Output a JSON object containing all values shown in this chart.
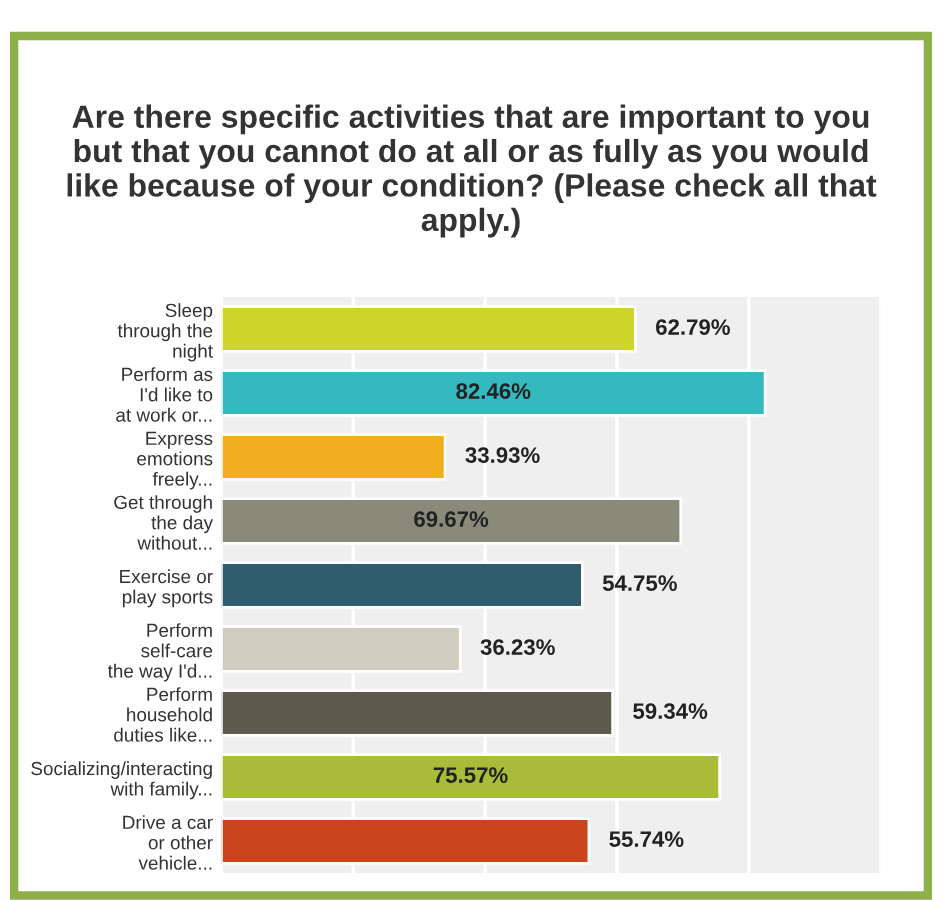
{
  "chart_data": {
    "type": "bar",
    "orientation": "horizontal",
    "title": "Are there specific activities that are important to you but that you cannot do at all or as fully as you would like because of your condition? (Please check all that apply.)",
    "categories": [
      "Sleep\nthrough the\nnight",
      "Perform as\nI'd like to\nat work or...",
      "Express\nemotions\nfreely...",
      "Get through\nthe day\nwithout...",
      "Exercise or\nplay sports",
      "Perform\nself-care\nthe way I'd...",
      "Perform\nhousehold\nduties like...",
      "Socializing/interacting\nwith family...",
      "Drive a car\nor other\nvehicle..."
    ],
    "values": [
      62.79,
      82.46,
      33.93,
      69.67,
      54.75,
      36.23,
      59.34,
      75.57,
      55.74
    ],
    "value_labels": [
      "62.79%",
      "82.46%",
      "33.93%",
      "69.67%",
      "54.75%",
      "36.23%",
      "59.34%",
      "75.57%",
      "55.74%"
    ],
    "colors": [
      "#cdd52a",
      "#35b9c0",
      "#f2ae1e",
      "#8a8a7a",
      "#2f5d6e",
      "#cfcdc0",
      "#5c5a4c",
      "#a8bc3a",
      "#c9431d"
    ],
    "xlim": [
      0,
      100
    ],
    "xticks": [
      {
        "value": 0,
        "label": null
      },
      {
        "value": 20,
        "label": null
      },
      {
        "value": 40,
        "label": null
      },
      {
        "value": 60,
        "label": null
      },
      {
        "value": 80,
        "label": null
      },
      {
        "value": 100,
        "label": null
      }
    ],
    "grid": "x",
    "tick_labels": "y"
  }
}
